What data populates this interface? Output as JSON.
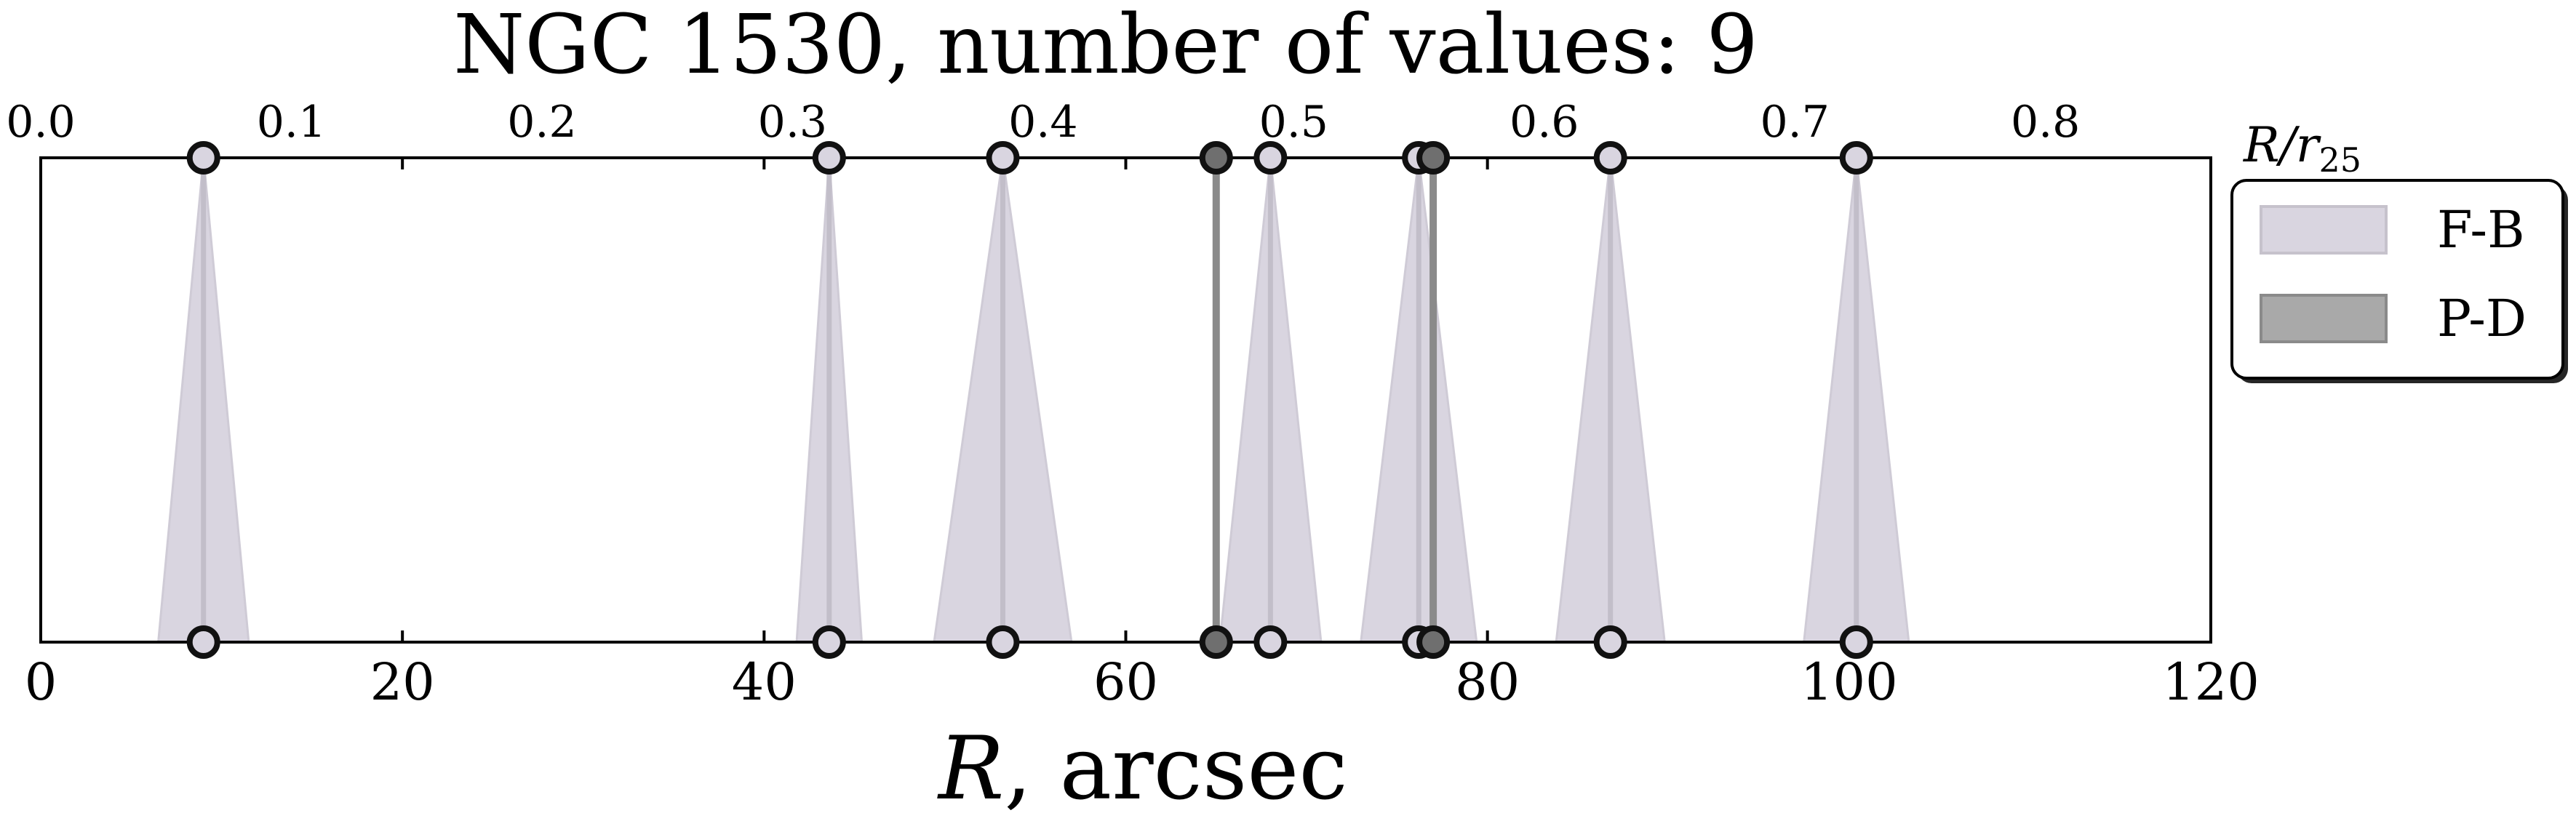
{
  "chart_data": {
    "type": "scatter",
    "title": "NGC 1530, number of values: 9",
    "xlabel_main": "R",
    "xlabel_unit": ", arcsec",
    "x2label_main": "R/r",
    "x2label_sub": "25",
    "xlim": [
      0,
      120
    ],
    "xticks": [
      "0",
      "20",
      "40",
      "60",
      "80",
      "100",
      "120"
    ],
    "xticks_values": [
      0,
      20,
      40,
      60,
      80,
      100,
      120
    ],
    "x2lim": [
      0.0,
      0.866
    ],
    "x2ticks": [
      "0.0",
      "0.1",
      "0.2",
      "0.3",
      "0.4",
      "0.5",
      "0.6",
      "0.7",
      "0.8"
    ],
    "x2ticks_values": [
      0.0,
      0.1,
      0.2,
      0.3,
      0.4,
      0.5,
      0.6,
      0.7,
      0.8
    ],
    "legend_position": "right",
    "grid": false,
    "series": [
      {
        "name": "F-B",
        "color": "#d9d5e0",
        "points": [
          {
            "x": 9.0,
            "err": 2.5
          },
          {
            "x": 43.6,
            "err": 1.8
          },
          {
            "x": 53.2,
            "err": 3.8
          },
          {
            "x": 68.0,
            "err": 2.8
          },
          {
            "x": 76.2,
            "err": 3.2
          },
          {
            "x": 86.8,
            "err": 3.0
          },
          {
            "x": 100.4,
            "err": 2.9
          }
        ]
      },
      {
        "name": "P-D",
        "color": "#8a8a8a",
        "points": [
          {
            "x": 65.0,
            "err": 0.0
          },
          {
            "x": 77.0,
            "err": 0.0
          }
        ]
      }
    ]
  },
  "legend": {
    "items": [
      {
        "label": "F-B",
        "color": "#d9d5e0",
        "edge": "#c6c2cc"
      },
      {
        "label": "P-D",
        "color": "#a9a9a9",
        "edge": "#8a8a8a"
      }
    ]
  }
}
